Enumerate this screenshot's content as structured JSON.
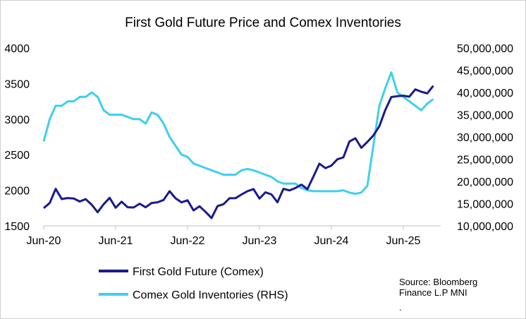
{
  "chart_data": {
    "type": "line",
    "title": "First Gold Future Price and Comex Inventories",
    "x_ticks": [
      "Jun-20",
      "Jun-21",
      "Jun-22",
      "Jun-23",
      "Jun-24",
      "Jun-25"
    ],
    "y_left": {
      "ticks": [
        "1500",
        "2000",
        "2500",
        "3000",
        "3500",
        "4000"
      ],
      "range": [
        1500,
        4000
      ]
    },
    "y_right": {
      "ticks": [
        "10,000,000",
        "15,000,000",
        "20,000,000",
        "25,000,000",
        "30,000,000",
        "35,000,000",
        "40,000,000",
        "45,000,000",
        "50,000,000"
      ],
      "range": [
        10000000,
        50000000
      ]
    },
    "x_start": "Jun-20",
    "x_step": "monthly",
    "series": [
      {
        "name": "First Gold Future (Comex)",
        "axis": "left",
        "color": "#1a1a8c",
        "values": [
          1750,
          1850,
          1980,
          1900,
          1900,
          1850,
          1880,
          1860,
          1780,
          1730,
          1770,
          1900,
          1780,
          1800,
          1790,
          1760,
          1780,
          1800,
          1800,
          1820,
          1900,
          1950,
          1900,
          1850,
          1820,
          1750,
          1770,
          1670,
          1650,
          1750,
          1800,
          1920,
          1850,
          1960,
          2000,
          1980,
          1920,
          1960,
          1920,
          1870,
          1990,
          2000,
          2060,
          2040,
          2040,
          2200,
          2340,
          2350,
          2330,
          2420,
          2500,
          2650,
          2740,
          2620,
          2640,
          2800,
          2900,
          3100,
          3350,
          3300,
          3320,
          3350,
          3380,
          3400,
          3380,
          3430
        ]
      },
      {
        "name": "Comex Gold Inventories (RHS)",
        "axis": "right",
        "color": "#3dd0ee",
        "values": [
          29000000,
          34000000,
          37000000,
          37000000,
          38000000,
          38000000,
          39000000,
          39000000,
          40000000,
          39000000,
          36000000,
          35000000,
          35000000,
          35000000,
          34500000,
          34000000,
          34000000,
          33000000,
          35500000,
          35000000,
          33000000,
          30000000,
          28000000,
          26000000,
          25500000,
          24000000,
          23500000,
          23000000,
          22500000,
          22000000,
          21500000,
          21500000,
          21500000,
          22500000,
          22800000,
          22500000,
          22000000,
          21500000,
          21000000,
          20000000,
          19500000,
          19500000,
          19500000,
          18500000,
          18000000,
          17800000,
          17800000,
          17800000,
          17800000,
          17800000,
          18000000,
          17500000,
          17200000,
          17500000,
          19000000,
          28000000,
          37000000,
          41000000,
          44500000,
          40000000,
          39000000,
          38000000,
          37000000,
          36000000,
          37500000,
          38500000
        ]
      }
    ],
    "legend": "bottom-left"
  },
  "source": {
    "line1": "Source:  Bloomberg",
    "line2": "Finance L.P MNI",
    "line3": "."
  }
}
